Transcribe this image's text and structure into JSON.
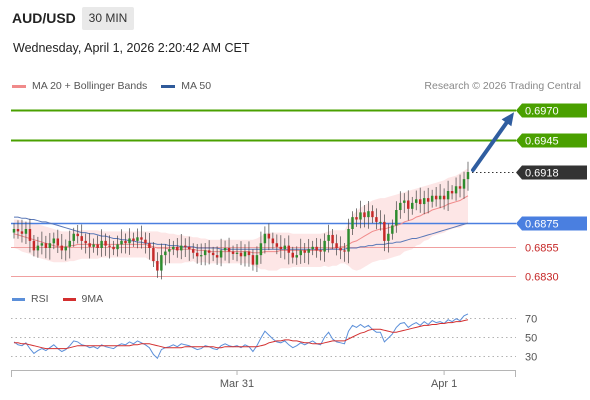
{
  "header": {
    "pair": "AUD/USD",
    "timeframe": "30 MIN",
    "timestamp": "Wednesday, April 1, 2026 2:20:42 AM CET"
  },
  "legend": {
    "items": [
      {
        "label": "MA 20 + Bollinger Bands",
        "color": "#f08a8a"
      },
      {
        "label": "MA 50",
        "color": "#2f5a9a"
      }
    ],
    "credit": "Research © 2026 Trading Central"
  },
  "colors": {
    "up": "#2e8b2e",
    "down": "#c62828",
    "green_level": "#4aa000",
    "blue_level": "#4a7fe0",
    "red_level": "#f0a0a0",
    "current": "#333333",
    "band": "#fde3e3",
    "ma20": "#f08a8a",
    "ma50": "#5a78b8",
    "arrow": "#2f5da0",
    "rsi": "#5b8fd9",
    "rsi_ma": "#d32f2f"
  },
  "chart_data": [
    {
      "type": "candlestick",
      "ylim": [
        0.6822,
        0.6982
      ],
      "levels": [
        {
          "value": 0.697,
          "label": "0.6970",
          "kind": "resistance"
        },
        {
          "value": 0.6945,
          "label": "0.6945",
          "kind": "resistance"
        },
        {
          "value": 0.6918,
          "label": "0.6918",
          "kind": "current"
        },
        {
          "value": 0.6875,
          "label": "0.6875",
          "kind": "pivot"
        },
        {
          "value": 0.6855,
          "label": "0.6855",
          "kind": "support"
        },
        {
          "value": 0.683,
          "label": "0.6830",
          "kind": "support"
        }
      ],
      "closes": [
        0.687,
        0.6868,
        0.6866,
        0.687,
        0.686,
        0.6852,
        0.6856,
        0.6858,
        0.6854,
        0.6858,
        0.6862,
        0.6856,
        0.6852,
        0.6855,
        0.686,
        0.6866,
        0.6864,
        0.686,
        0.6858,
        0.6855,
        0.6857,
        0.6854,
        0.686,
        0.6856,
        0.6855,
        0.6853,
        0.6857,
        0.686,
        0.6858,
        0.6862,
        0.686,
        0.6863,
        0.6861,
        0.6858,
        0.6854,
        0.6843,
        0.6835,
        0.6848,
        0.6851,
        0.6853,
        0.6855,
        0.6852,
        0.6856,
        0.6855,
        0.6853,
        0.685,
        0.6847,
        0.6848,
        0.6852,
        0.685,
        0.6848,
        0.6846,
        0.6852,
        0.6854,
        0.6851,
        0.6849,
        0.685,
        0.6847,
        0.6851,
        0.6848,
        0.684,
        0.6848,
        0.6858,
        0.6866,
        0.6862,
        0.6858,
        0.6855,
        0.6853,
        0.6856,
        0.685,
        0.6846,
        0.6848,
        0.6852,
        0.685,
        0.6853,
        0.6855,
        0.6852,
        0.6851,
        0.686,
        0.6865,
        0.6858,
        0.6854,
        0.6852,
        0.6851,
        0.687,
        0.688,
        0.6878,
        0.6884,
        0.688,
        0.6885,
        0.688,
        0.6876,
        0.6876,
        0.686,
        0.6866,
        0.6873,
        0.6886,
        0.6892,
        0.6894,
        0.6887,
        0.6892,
        0.6895,
        0.6891,
        0.6896,
        0.6893,
        0.6898,
        0.6895,
        0.6898,
        0.6895,
        0.6902,
        0.69,
        0.6906,
        0.6904,
        0.6912,
        0.6918
      ],
      "ma20": [
        0.6866,
        0.6865,
        0.6864,
        0.6863,
        0.6862,
        0.6861,
        0.686,
        0.6859,
        0.6858,
        0.6857,
        0.6856,
        0.6855,
        0.6855,
        0.6855,
        0.6856,
        0.6856,
        0.6857,
        0.6857,
        0.6857,
        0.6857,
        0.6857,
        0.6857,
        0.6857,
        0.6857,
        0.6857,
        0.6857,
        0.6857,
        0.6857,
        0.6857,
        0.6857,
        0.6857,
        0.6857,
        0.6857,
        0.6857,
        0.6856,
        0.6855,
        0.6854,
        0.6854,
        0.6854,
        0.6853,
        0.6853,
        0.6853,
        0.6853,
        0.6853,
        0.6853,
        0.6853,
        0.6852,
        0.6852,
        0.6852,
        0.6851,
        0.6851,
        0.6851,
        0.6851,
        0.6851,
        0.6851,
        0.6851,
        0.6851,
        0.6851,
        0.6851,
        0.6851,
        0.685,
        0.685,
        0.685,
        0.6851,
        0.6851,
        0.6851,
        0.6851,
        0.6852,
        0.6852,
        0.6852,
        0.6852,
        0.6852,
        0.6852,
        0.6852,
        0.6852,
        0.6852,
        0.6852,
        0.6852,
        0.6853,
        0.6853,
        0.6854,
        0.6854,
        0.6855,
        0.6855,
        0.6857,
        0.6859,
        0.686,
        0.6862,
        0.6864,
        0.6866,
        0.6868,
        0.6869,
        0.687,
        0.687,
        0.6871,
        0.6872,
        0.6873,
        0.6874,
        0.6876,
        0.6877,
        0.6878,
        0.688,
        0.6881,
        0.6883,
        0.6884,
        0.6886,
        0.6887,
        0.6888,
        0.6889,
        0.6891,
        0.6892,
        0.6893,
        0.6894,
        0.6896,
        0.6898
      ],
      "ma50": [
        0.688,
        0.688,
        0.6879,
        0.6879,
        0.6878,
        0.6878,
        0.6877,
        0.6876,
        0.6876,
        0.6875,
        0.6874,
        0.6873,
        0.6872,
        0.6871,
        0.687,
        0.6869,
        0.6868,
        0.6867,
        0.6867,
        0.6866,
        0.6866,
        0.6865,
        0.6864,
        0.6864,
        0.6863,
        0.6862,
        0.6862,
        0.6861,
        0.6861,
        0.686,
        0.686,
        0.6859,
        0.6859,
        0.6858,
        0.6858,
        0.6858,
        0.6857,
        0.6857,
        0.6857,
        0.6856,
        0.6856,
        0.6856,
        0.6855,
        0.6855,
        0.6855,
        0.6855,
        0.6854,
        0.6854,
        0.6854,
        0.6854,
        0.6854,
        0.6854,
        0.6853,
        0.6853,
        0.6853,
        0.6853,
        0.6853,
        0.6853,
        0.6853,
        0.6853,
        0.6853,
        0.6853,
        0.6853,
        0.6853,
        0.6853,
        0.6853,
        0.6853,
        0.6853,
        0.6853,
        0.6853,
        0.6853,
        0.6853,
        0.6853,
        0.6853,
        0.6853,
        0.6853,
        0.6853,
        0.6853,
        0.6853,
        0.6853,
        0.6853,
        0.6853,
        0.6853,
        0.6853,
        0.6854,
        0.6854,
        0.6854,
        0.6855,
        0.6855,
        0.6856,
        0.6856,
        0.6857,
        0.6857,
        0.6857,
        0.6858,
        0.6858,
        0.6859,
        0.6859,
        0.686,
        0.6861,
        0.6862,
        0.6862,
        0.6863,
        0.6864,
        0.6865,
        0.6866,
        0.6867,
        0.6868,
        0.6869,
        0.687,
        0.6871,
        0.6872,
        0.6873,
        0.6874,
        0.6875
      ],
      "band_upper": [
        0.6878,
        0.6878,
        0.6877,
        0.6876,
        0.6876,
        0.6875,
        0.6874,
        0.6873,
        0.6872,
        0.6871,
        0.687,
        0.6869,
        0.6868,
        0.6868,
        0.6868,
        0.6869,
        0.6869,
        0.6869,
        0.6869,
        0.6869,
        0.6869,
        0.6869,
        0.6868,
        0.6868,
        0.6868,
        0.6868,
        0.6868,
        0.6868,
        0.6868,
        0.6868,
        0.6868,
        0.6868,
        0.6868,
        0.6868,
        0.6868,
        0.6868,
        0.6868,
        0.6867,
        0.6867,
        0.6866,
        0.6866,
        0.6865,
        0.6865,
        0.6864,
        0.6864,
        0.6863,
        0.6863,
        0.6862,
        0.6862,
        0.6861,
        0.6861,
        0.6861,
        0.6861,
        0.6861,
        0.6861,
        0.6861,
        0.6861,
        0.6861,
        0.6861,
        0.6861,
        0.6861,
        0.6862,
        0.6864,
        0.6866,
        0.6867,
        0.6867,
        0.6867,
        0.6867,
        0.6867,
        0.6867,
        0.6866,
        0.6866,
        0.6866,
        0.6866,
        0.6866,
        0.6866,
        0.6866,
        0.6866,
        0.6867,
        0.6868,
        0.6869,
        0.6869,
        0.6869,
        0.6869,
        0.6875,
        0.6882,
        0.6885,
        0.6888,
        0.689,
        0.6892,
        0.6894,
        0.6895,
        0.6896,
        0.6896,
        0.6897,
        0.6898,
        0.6899,
        0.69,
        0.6901,
        0.6902,
        0.6903,
        0.6904,
        0.6905,
        0.6906,
        0.6907,
        0.6908,
        0.6909,
        0.691,
        0.6911,
        0.6913,
        0.6914,
        0.6915,
        0.6917,
        0.6919,
        0.6921
      ],
      "band_lower": [
        0.6854,
        0.6853,
        0.6851,
        0.685,
        0.6849,
        0.6847,
        0.6846,
        0.6845,
        0.6844,
        0.6843,
        0.6842,
        0.6842,
        0.6842,
        0.6842,
        0.6843,
        0.6843,
        0.6844,
        0.6845,
        0.6845,
        0.6845,
        0.6845,
        0.6845,
        0.6846,
        0.6846,
        0.6846,
        0.6846,
        0.6846,
        0.6846,
        0.6846,
        0.6846,
        0.6846,
        0.6846,
        0.6846,
        0.6846,
        0.6844,
        0.6842,
        0.684,
        0.6841,
        0.6841,
        0.6841,
        0.6841,
        0.6841,
        0.6841,
        0.6842,
        0.6842,
        0.6843,
        0.6841,
        0.6842,
        0.6842,
        0.6841,
        0.6841,
        0.6841,
        0.6841,
        0.6841,
        0.6841,
        0.6841,
        0.6841,
        0.6841,
        0.6841,
        0.6841,
        0.6839,
        0.6838,
        0.6836,
        0.6836,
        0.6835,
        0.6835,
        0.6835,
        0.6837,
        0.6837,
        0.6837,
        0.6838,
        0.6838,
        0.6838,
        0.6838,
        0.6838,
        0.6838,
        0.6838,
        0.6838,
        0.6839,
        0.6838,
        0.6839,
        0.6839,
        0.6841,
        0.6841,
        0.6839,
        0.6836,
        0.6835,
        0.6836,
        0.6838,
        0.684,
        0.6842,
        0.6843,
        0.6844,
        0.6844,
        0.6845,
        0.6846,
        0.6847,
        0.6848,
        0.6851,
        0.6852,
        0.6853,
        0.6856,
        0.6857,
        0.686,
        0.6861,
        0.6864,
        0.6865,
        0.6866,
        0.6867,
        0.6869,
        0.687,
        0.6871,
        0.6871,
        0.6873,
        0.6875
      ],
      "projection": {
        "from": 0.6918,
        "to": 0.697
      },
      "x_ticks": [
        {
          "index": 56,
          "label": "Mar 31"
        },
        {
          "index": 108,
          "label": "Apr 1"
        }
      ]
    },
    {
      "type": "line",
      "ylim": [
        20,
        78
      ],
      "y_ticks": [
        70,
        50,
        30
      ],
      "series": [
        {
          "name": "RSI",
          "values": [
            45,
            42,
            41,
            44,
            38,
            33,
            36,
            38,
            36,
            39,
            42,
            38,
            35,
            37,
            41,
            46,
            45,
            42,
            41,
            39,
            40,
            38,
            42,
            40,
            39,
            38,
            41,
            43,
            42,
            45,
            43,
            46,
            44,
            42,
            39,
            32,
            28,
            37,
            39,
            40,
            42,
            40,
            43,
            42,
            41,
            39,
            37,
            38,
            41,
            40,
            38,
            37,
            41,
            43,
            41,
            40,
            41,
            39,
            42,
            40,
            35,
            41,
            49,
            56,
            52,
            48,
            45,
            44,
            46,
            42,
            39,
            41,
            44,
            42,
            44,
            46,
            43,
            42,
            50,
            55,
            48,
            45,
            44,
            43,
            56,
            62,
            60,
            63,
            60,
            62,
            58,
            55,
            55,
            45,
            49,
            53,
            60,
            64,
            65,
            60,
            63,
            65,
            62,
            66,
            63,
            67,
            65,
            66,
            64,
            68,
            66,
            69,
            67,
            72,
            74
          ]
        },
        {
          "name": "9MA",
          "values": [
            44,
            44,
            43,
            43,
            42,
            41,
            40,
            39,
            38,
            38,
            38,
            38,
            38,
            38,
            39,
            40,
            41,
            41,
            41,
            41,
            41,
            41,
            41,
            41,
            41,
            41,
            41,
            41,
            41,
            41,
            42,
            42,
            43,
            43,
            43,
            42,
            41,
            40,
            39,
            39,
            39,
            39,
            39,
            40,
            40,
            40,
            40,
            40,
            40,
            40,
            40,
            39,
            39,
            40,
            40,
            40,
            40,
            40,
            40,
            40,
            40,
            40,
            41,
            42,
            44,
            45,
            46,
            46,
            47,
            47,
            46,
            46,
            45,
            44,
            44,
            43,
            43,
            43,
            44,
            45,
            46,
            46,
            46,
            46,
            48,
            50,
            52,
            54,
            55,
            57,
            58,
            58,
            58,
            57,
            56,
            55,
            55,
            56,
            57,
            58,
            59,
            60,
            61,
            62,
            62,
            63,
            63,
            64,
            64,
            65,
            65,
            66,
            66,
            67,
            68
          ]
        }
      ]
    }
  ],
  "rsi_legend": {
    "items": [
      {
        "label": "RSI",
        "color": "#5b8fd9"
      },
      {
        "label": "9MA",
        "color": "#d32f2f"
      }
    ]
  }
}
